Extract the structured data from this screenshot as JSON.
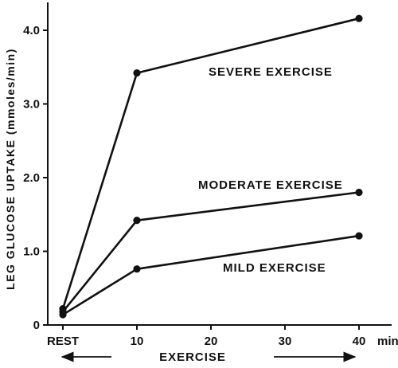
{
  "chart_data": {
    "type": "line",
    "ylabel": "LEG GLUCOSE UPTAKE (mmoles/min)",
    "x_tick_labels": [
      "REST",
      "10",
      "20",
      "30",
      "40"
    ],
    "x_unit": "min",
    "y_tick_labels": [
      "0",
      "1.0",
      "2.0",
      "3.0",
      "4.0"
    ],
    "x_bracket_label": "EXERCISE",
    "ylim": [
      0,
      4.4
    ],
    "xlim": [
      -1,
      44
    ],
    "series": [
      {
        "name": "SEVERE EXERCISE",
        "x": [
          0,
          10,
          40
        ],
        "y": [
          0.22,
          3.42,
          4.16
        ]
      },
      {
        "name": "MODERATE EXERCISE",
        "x": [
          0,
          10,
          40
        ],
        "y": [
          0.18,
          1.42,
          1.8
        ]
      },
      {
        "name": "MILD EXERCISE",
        "x": [
          0,
          10,
          40
        ],
        "y": [
          0.14,
          0.76,
          1.21
        ]
      }
    ],
    "grid": false,
    "legend": "inline labels"
  }
}
